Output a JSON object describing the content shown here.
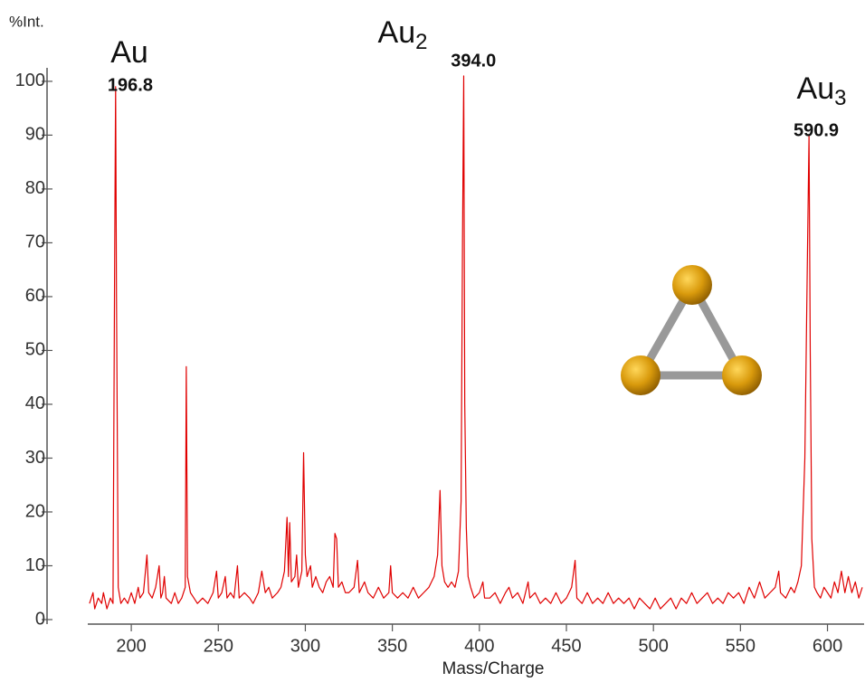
{
  "chart_data": {
    "type": "line",
    "y_label": "%Int.",
    "x_label": "Mass/Charge",
    "xlim": [
      175,
      620
    ],
    "xticks": [
      200,
      250,
      300,
      350,
      400,
      450,
      500,
      550,
      600
    ],
    "ylim": [
      0,
      102
    ],
    "yticks": [
      0,
      10,
      20,
      30,
      40,
      50,
      60,
      70,
      80,
      90,
      100
    ],
    "color": "#e00000",
    "x": [
      176,
      178,
      179,
      181,
      183,
      184,
      186,
      188,
      189.5,
      190.5,
      191,
      191.5,
      192.5,
      194,
      196,
      198,
      200,
      202,
      204,
      205,
      207,
      209,
      210,
      212,
      214,
      216,
      217,
      218,
      219,
      220,
      223,
      225,
      227,
      229,
      231,
      231.6,
      232.3,
      234,
      236,
      238,
      241,
      244,
      247,
      249,
      250,
      252,
      254,
      255,
      257,
      259,
      261,
      262,
      265,
      268,
      270,
      273,
      275,
      277,
      279,
      281,
      284,
      286,
      288,
      289.5,
      290.3,
      291,
      292,
      294,
      295,
      296,
      298,
      299,
      300,
      301,
      303,
      304,
      306,
      308,
      310,
      312,
      314,
      316,
      317,
      318,
      319,
      321,
      323,
      325,
      328,
      330,
      331,
      334,
      336,
      339,
      342,
      345,
      348,
      349,
      350,
      353,
      356,
      359,
      362,
      365,
      368,
      371,
      374,
      376,
      377.4,
      378.5,
      380,
      382,
      384,
      386,
      388,
      389.5,
      390.3,
      391,
      391.6,
      392.5,
      393.5,
      395,
      397,
      400,
      402,
      403,
      406,
      409,
      412,
      415,
      417,
      419,
      422,
      425,
      428,
      429,
      432,
      435,
      438,
      441,
      444,
      447,
      450,
      453,
      455,
      456,
      459,
      462,
      465,
      468,
      471,
      474,
      477,
      480,
      483,
      486,
      489,
      492,
      495,
      498,
      501,
      504,
      507,
      510,
      513,
      516,
      519,
      522,
      525,
      528,
      531,
      534,
      537,
      540,
      543,
      546,
      549,
      552,
      555,
      558,
      561,
      564,
      567,
      570,
      572,
      573,
      576,
      579,
      581,
      583,
      585,
      587,
      588.5,
      589.4,
      590.1,
      591,
      592.5,
      594,
      596,
      598,
      600,
      602,
      604,
      606,
      608,
      610,
      612,
      614,
      616,
      618,
      620
    ],
    "values": [
      3,
      5,
      2,
      4,
      3,
      5,
      2,
      4,
      3,
      70,
      99,
      60,
      6,
      3,
      4,
      3,
      5,
      3,
      6,
      4,
      5,
      12,
      5,
      4,
      6,
      10,
      4,
      5,
      8,
      4,
      3,
      5,
      3,
      4,
      6,
      47,
      8,
      5,
      4,
      3,
      4,
      3,
      5,
      9,
      4,
      5,
      8,
      4,
      5,
      4,
      10,
      4,
      5,
      4,
      3,
      5,
      9,
      5,
      6,
      4,
      5,
      6,
      9,
      19,
      8,
      18,
      7,
      8,
      12,
      6,
      9,
      31,
      12,
      8,
      10,
      6,
      8,
      6,
      5,
      7,
      8,
      6,
      16,
      15,
      6,
      7,
      5,
      5,
      6,
      11,
      5,
      7,
      5,
      4,
      6,
      4,
      5,
      10,
      5,
      4,
      5,
      4,
      6,
      4,
      5,
      6,
      8,
      12,
      24,
      10,
      7,
      6,
      7,
      6,
      9,
      22,
      70,
      101,
      40,
      17,
      8,
      6,
      4,
      5,
      7,
      4,
      4,
      5,
      3,
      5,
      6,
      4,
      5,
      3,
      7,
      4,
      5,
      3,
      4,
      3,
      5,
      3,
      4,
      6,
      11,
      4,
      3,
      5,
      3,
      4,
      3,
      5,
      3,
      4,
      3,
      4,
      2,
      4,
      3,
      2,
      4,
      2,
      3,
      4,
      2,
      4,
      3,
      5,
      3,
      4,
      5,
      3,
      4,
      3,
      5,
      4,
      5,
      3,
      6,
      4,
      7,
      4,
      5,
      6,
      9,
      5,
      4,
      6,
      5,
      7,
      10,
      30,
      68,
      90,
      50,
      15,
      6,
      5,
      4,
      6,
      5,
      4,
      7,
      5,
      9,
      5,
      8,
      5,
      7,
      4,
      6
    ],
    "annotations": [
      {
        "formula": "Au",
        "mass": "196.8",
        "x": 196.8
      },
      {
        "formula": "Au",
        "sub": "2",
        "mass": "394.0",
        "x": 394.0
      },
      {
        "formula": "Au",
        "sub": "3",
        "mass": "590.9",
        "x": 590.9
      }
    ]
  }
}
